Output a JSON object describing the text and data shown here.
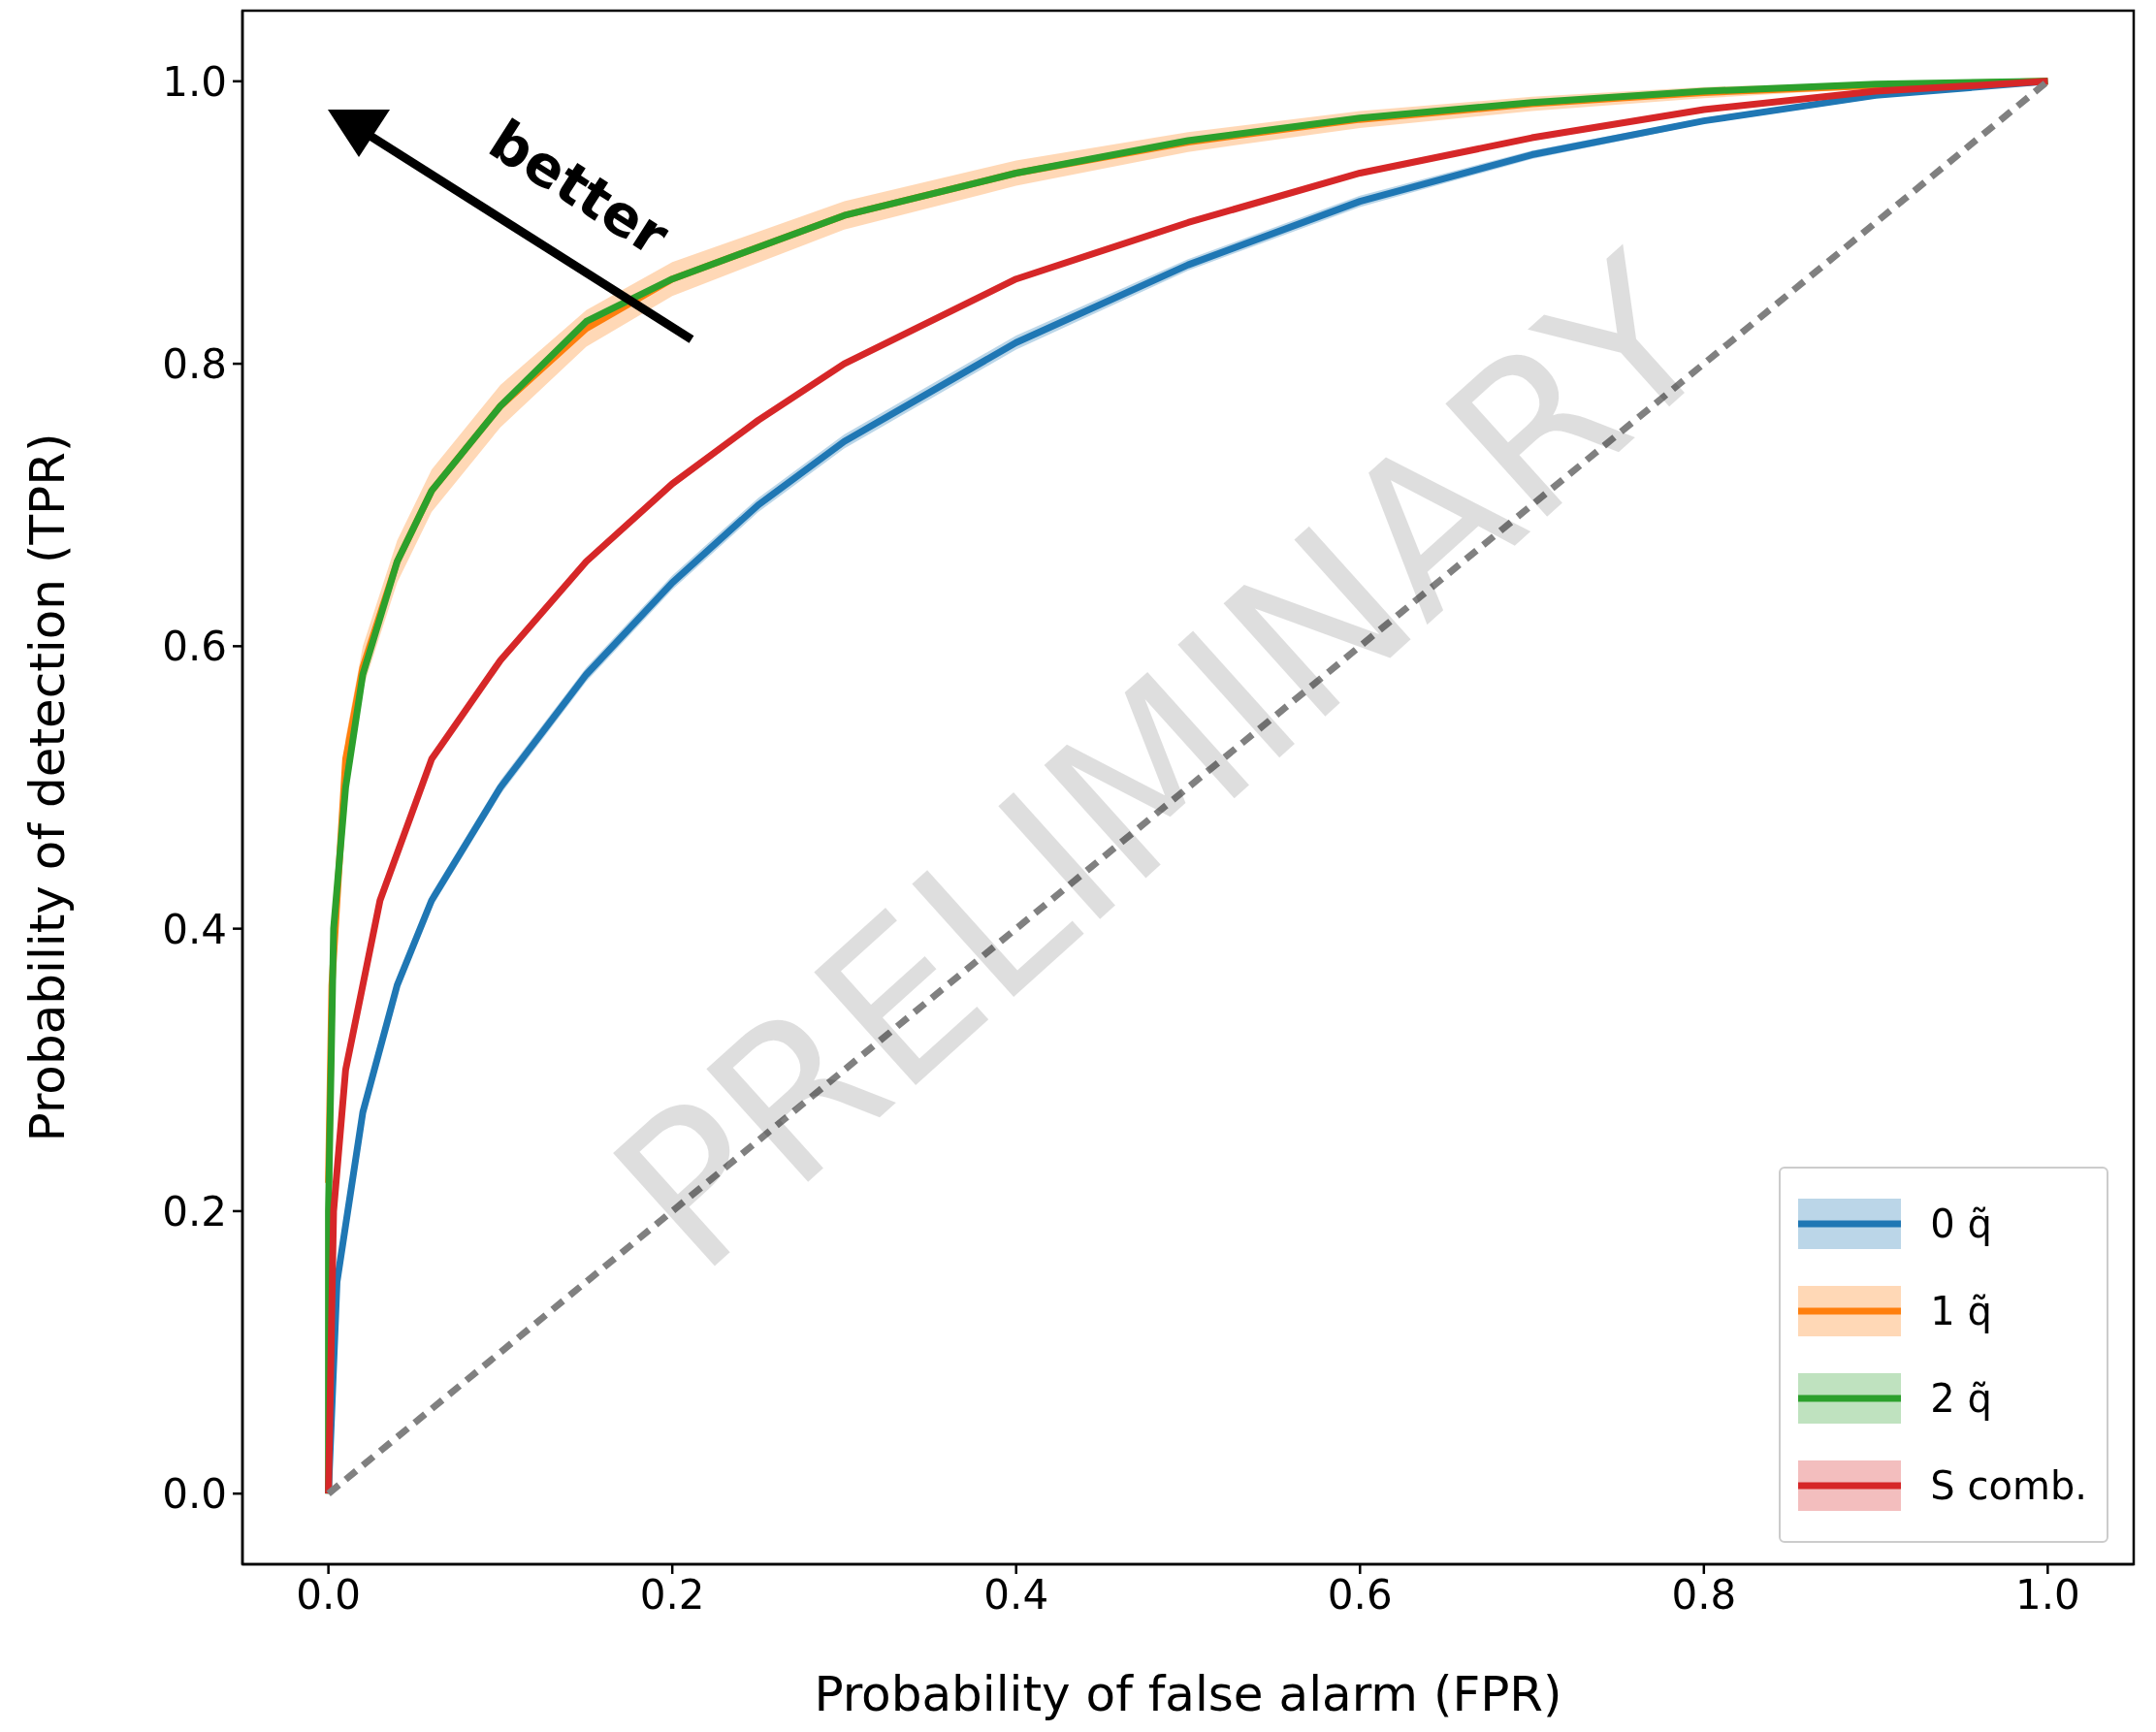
{
  "chart_data": {
    "type": "line",
    "xlabel": "Probability of false alarm (FPR)",
    "ylabel": "Probability of detection (TPR)",
    "xlim": [
      -0.05,
      1.05
    ],
    "ylim": [
      -0.05,
      1.05
    ],
    "xticks": [
      {
        "value": 0,
        "label": "0.0"
      },
      0.2,
      0.4,
      0.6,
      0.8,
      {
        "value": 1,
        "label": "1.0"
      }
    ],
    "yticks": [
      {
        "value": 0,
        "label": "0.0"
      },
      0.2,
      0.4,
      0.6,
      0.8,
      {
        "value": 1,
        "label": "1.0"
      }
    ],
    "legend": "bottom right",
    "marker": "none",
    "annotations": [
      "better",
      "PRELIMINARY"
    ],
    "series": [
      {
        "name": "0 q̃",
        "color": "#1f77b4",
        "x": [
          0,
          0.005,
          0.02,
          0.04,
          0.06,
          0.1,
          0.15,
          0.2,
          0.25,
          0.3,
          0.4,
          0.5,
          0.6,
          0.7,
          0.8,
          0.9,
          1
        ],
        "values": [
          0,
          0.15,
          0.27,
          0.36,
          0.42,
          0.5,
          0.58,
          0.645,
          0.7,
          0.745,
          0.815,
          0.87,
          0.915,
          0.948,
          0.972,
          0.99,
          1
        ],
        "lower": [
          0,
          0.145,
          0.265,
          0.355,
          0.415,
          0.495,
          0.575,
          0.64,
          0.695,
          0.74,
          0.81,
          0.866,
          0.911,
          0.945,
          0.97,
          0.988,
          1
        ],
        "upper": [
          0,
          0.155,
          0.275,
          0.365,
          0.425,
          0.505,
          0.585,
          0.65,
          0.705,
          0.75,
          0.82,
          0.874,
          0.919,
          0.951,
          0.974,
          0.992,
          1
        ]
      },
      {
        "name": "1 q̃",
        "color": "#ff7f0e",
        "x": [
          0,
          0.002,
          0.01,
          0.02,
          0.04,
          0.06,
          0.1,
          0.15,
          0.2,
          0.3,
          0.4,
          0.5,
          0.6,
          0.7,
          0.8,
          0.9,
          1
        ],
        "values": [
          0.22,
          0.36,
          0.52,
          0.585,
          0.66,
          0.71,
          0.77,
          0.825,
          0.86,
          0.905,
          0.935,
          0.957,
          0.973,
          0.984,
          0.992,
          0.997,
          1
        ],
        "lower": [
          0.2,
          0.34,
          0.505,
          0.57,
          0.645,
          0.695,
          0.755,
          0.812,
          0.848,
          0.895,
          0.926,
          0.95,
          0.967,
          0.979,
          0.988,
          0.995,
          1
        ],
        "upper": [
          0.24,
          0.38,
          0.535,
          0.6,
          0.675,
          0.725,
          0.785,
          0.838,
          0.872,
          0.915,
          0.944,
          0.964,
          0.979,
          0.989,
          0.996,
          0.999,
          1
        ]
      },
      {
        "name": "2 q̃",
        "color": "#2ca02c",
        "x": [
          0,
          0,
          0.003,
          0.01,
          0.02,
          0.04,
          0.06,
          0.1,
          0.15,
          0.2,
          0.3,
          0.4,
          0.5,
          0.6,
          0.7,
          0.8,
          0.9,
          1
        ],
        "values": [
          0,
          0.2,
          0.4,
          0.5,
          0.58,
          0.66,
          0.71,
          0.77,
          0.83,
          0.86,
          0.905,
          0.935,
          0.958,
          0.974,
          0.985,
          0.993,
          0.998,
          1
        ]
      },
      {
        "name": "S comb.",
        "color": "#d62728",
        "x": [
          0,
          0.003,
          0.01,
          0.03,
          0.06,
          0.1,
          0.15,
          0.2,
          0.25,
          0.3,
          0.4,
          0.5,
          0.6,
          0.7,
          0.8,
          0.9,
          1
        ],
        "values": [
          0,
          0.2,
          0.3,
          0.42,
          0.52,
          0.59,
          0.66,
          0.715,
          0.76,
          0.8,
          0.86,
          0.9,
          0.935,
          0.96,
          0.98,
          0.993,
          1
        ]
      },
      {
        "type": "line",
        "color": "#808080",
        "line_style": "dashed",
        "x": [
          0,
          1
        ],
        "values": [
          0,
          1
        ]
      }
    ]
  }
}
